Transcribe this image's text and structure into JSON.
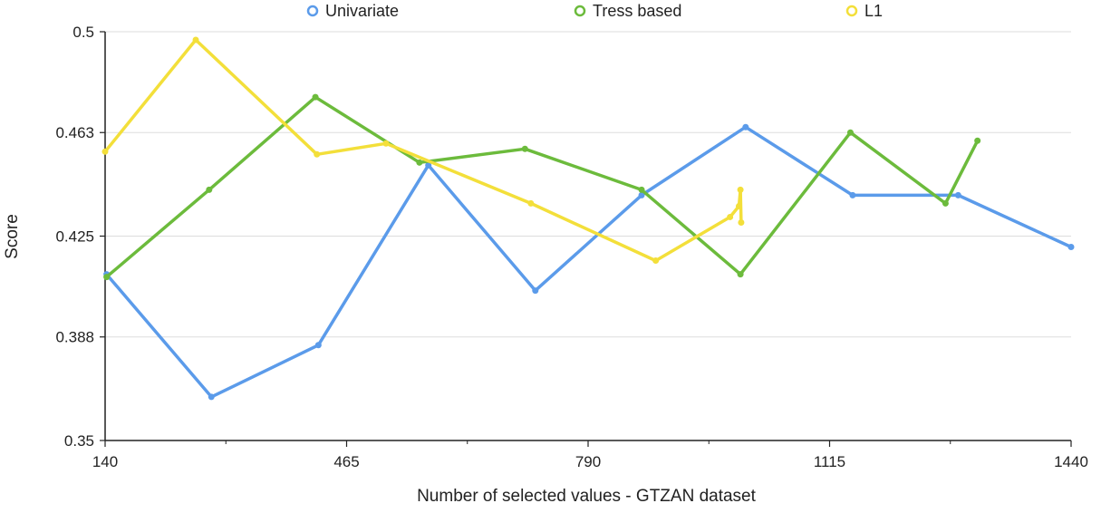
{
  "chart_data": {
    "type": "line",
    "title": "",
    "xlabel": "Number of selected values - GTZAN dataset",
    "ylabel": "Score",
    "xlim": [
      140,
      1440
    ],
    "ylim": [
      0.35,
      0.5
    ],
    "xticks": [
      140,
      465,
      790,
      1115,
      1440
    ],
    "xtick_labels": [
      "140",
      "465",
      "790",
      "1115",
      "1440"
    ],
    "yticks": [
      0.35,
      0.388,
      0.425,
      0.463,
      0.5
    ],
    "ytick_labels": [
      "0.35",
      "0.388",
      "0.425",
      "0.463",
      "0.5"
    ],
    "grid": "horizontal",
    "legend_position": "top",
    "series": [
      {
        "name": "Univariate",
        "color": "#5b9bea",
        "points": [
          [
            142,
            0.411
          ],
          [
            283,
            0.366
          ],
          [
            427,
            0.385
          ],
          [
            575,
            0.451
          ],
          [
            719,
            0.405
          ],
          [
            862,
            0.44
          ],
          [
            1002,
            0.465
          ],
          [
            1146,
            0.44
          ],
          [
            1288,
            0.44
          ],
          [
            1440,
            0.421
          ]
        ]
      },
      {
        "name": "Tress based",
        "color": "#6cbb3c",
        "points": [
          [
            142,
            0.41
          ],
          [
            280,
            0.442
          ],
          [
            423,
            0.476
          ],
          [
            563,
            0.452
          ],
          [
            705,
            0.457
          ],
          [
            862,
            0.442
          ],
          [
            995,
            0.411
          ],
          [
            1143,
            0.463
          ],
          [
            1271,
            0.437
          ],
          [
            1314,
            0.46
          ]
        ]
      },
      {
        "name": "L1",
        "color": "#f3df3a",
        "points": [
          [
            140,
            0.456
          ],
          [
            262,
            0.497
          ],
          [
            425,
            0.455
          ],
          [
            518,
            0.459
          ],
          [
            713,
            0.437
          ],
          [
            881,
            0.416
          ],
          [
            981,
            0.432
          ],
          [
            993,
            0.436
          ],
          [
            995,
            0.442
          ],
          [
            996,
            0.43
          ]
        ]
      }
    ]
  }
}
